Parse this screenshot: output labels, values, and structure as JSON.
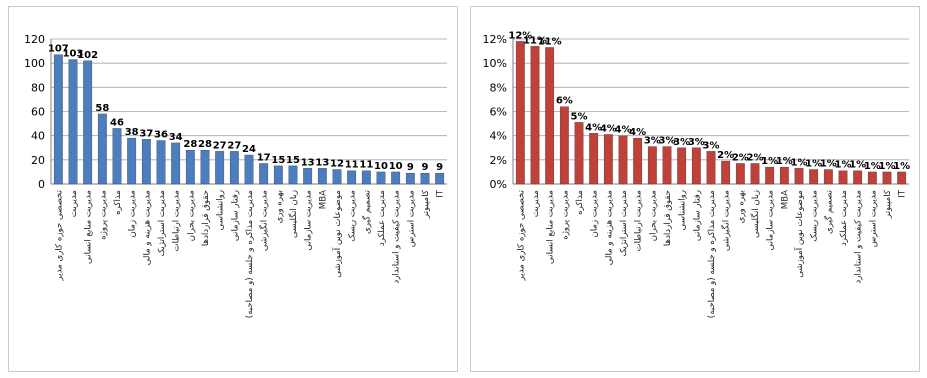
{
  "chart_data": [
    {
      "type": "bar",
      "categories": [
        "تخصصی حوزه کاری مدیر",
        "مدیریت",
        "مدیریت منابع انسانی",
        "مدیریت پروژه",
        "مذاکره",
        "مدیریت زمان",
        "مدیریت هزینه و مالی",
        "مدیریت استراتژیک",
        "مدیریت ارتباطات",
        "مدیریت بحران",
        "حقوق قراردادها",
        "روانشناسی",
        "رفتار سازمانی",
        "مدیریت مذاکره و جلسه (و مصاحبه)",
        "مدیریت انگیزشی",
        "بهره وری",
        "زبان انگلیسی",
        "مدیریت سازمانی",
        "MBA",
        "موضوعات نوین آموزشی",
        "مدیریت ریسک",
        "تصمیم گیری",
        "مدیریت عملکرد",
        "مدیریت کیفیت و استاندارد",
        "مدیریت استرس",
        "کامپیوتر",
        "IT"
      ],
      "values": [
        107,
        103,
        102,
        58,
        46,
        38,
        37,
        36,
        34,
        28,
        28,
        27,
        27,
        24,
        17,
        15,
        15,
        13,
        13,
        12,
        11,
        11,
        10,
        10,
        9,
        9,
        9
      ],
      "data_labels": [
        "107",
        "103",
        "102",
        "58",
        "46",
        "38",
        "37",
        "36",
        "34",
        "28",
        "28",
        "27",
        "27",
        "24",
        "17",
        "15",
        "15",
        "13",
        "13",
        "12",
        "11",
        "11",
        "10",
        "10",
        "9",
        "9",
        "9"
      ],
      "ylim": [
        0,
        120
      ],
      "yticks": [
        "0",
        "20",
        "40",
        "60",
        "80",
        "100",
        "120"
      ],
      "color": "#4a7ebf",
      "grid": true
    },
    {
      "type": "bar",
      "categories": [
        "تخصصی حوزه کاری مدیر",
        "مدیریت",
        "مدیریت منابع انسانی",
        "مدیریت پروژه",
        "مذاکره",
        "مدیریت زمان",
        "مدیریت هزینه و مالی",
        "مدیریت استراتژیک",
        "مدیریت ارتباطات",
        "مدیریت بحران",
        "حقوق قراردادها",
        "روانشناسی",
        "رفتار سازمانی",
        "مدیریت مذاکره و جلسه (و مصاحبه)",
        "مدیریت انگیزشی",
        "بهره وری",
        "زبان انگلیسی",
        "مدیریت سازمانی",
        "MBA",
        "موضوعات نوین آموزشی",
        "مدیریت ریسک",
        "تصمیم گیری",
        "مدیریت عملکرد",
        "مدیریت کیفیت و استاندارد",
        "مدیریت استرس",
        "کامپیوتر",
        "IT"
      ],
      "values": [
        11.8,
        11.4,
        11.3,
        6.4,
        5.1,
        4.2,
        4.1,
        4.0,
        3.8,
        3.1,
        3.1,
        3.0,
        3.0,
        2.7,
        1.9,
        1.7,
        1.7,
        1.4,
        1.4,
        1.3,
        1.2,
        1.2,
        1.1,
        1.1,
        1.0,
        1.0,
        1.0
      ],
      "data_labels": [
        "12%",
        "11%",
        "11%",
        "6%",
        "5%",
        "4%",
        "4%",
        "4%",
        "4%",
        "3%",
        "3%",
        "3%",
        "3%",
        "3%",
        "2%",
        "2%",
        "2%",
        "1%",
        "1%",
        "1%",
        "1%",
        "1%",
        "1%",
        "1%",
        "1%",
        "1%",
        "1%"
      ],
      "ylim": [
        0,
        12
      ],
      "yticks": [
        "0%",
        "2%",
        "4%",
        "6%",
        "8%",
        "10%",
        "12%"
      ],
      "color": "#c0403a",
      "grid": true
    }
  ]
}
